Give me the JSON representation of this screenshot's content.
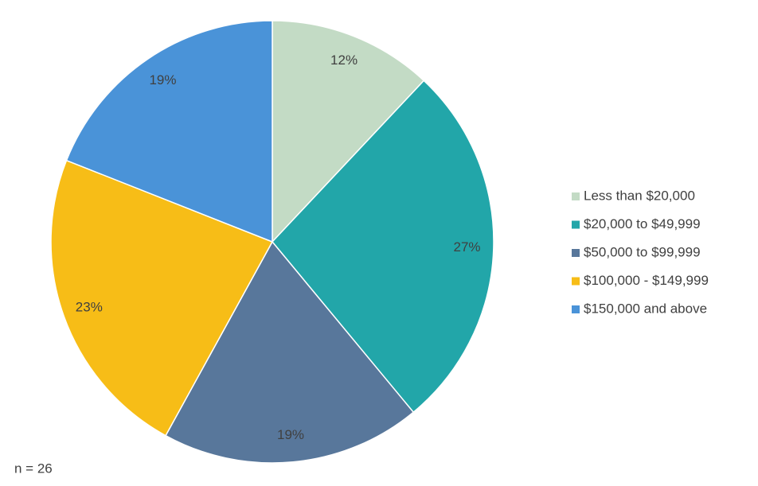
{
  "chart_data": {
    "type": "pie",
    "categories": [
      "Less than $20,000",
      "$20,000 to $49,999",
      "$50,000 to $99,999",
      "$100,000 - $149,999",
      "$150,000 and above"
    ],
    "values": [
      12,
      27,
      19,
      23,
      19
    ],
    "value_labels": [
      "12%",
      "27%",
      "19%",
      "23%",
      "19%"
    ],
    "colors": [
      "#c3dbc5",
      "#22a6a9",
      "#58779b",
      "#f7bd17",
      "#4a93d8"
    ],
    "legend": "right",
    "annotation": "n = 26"
  }
}
